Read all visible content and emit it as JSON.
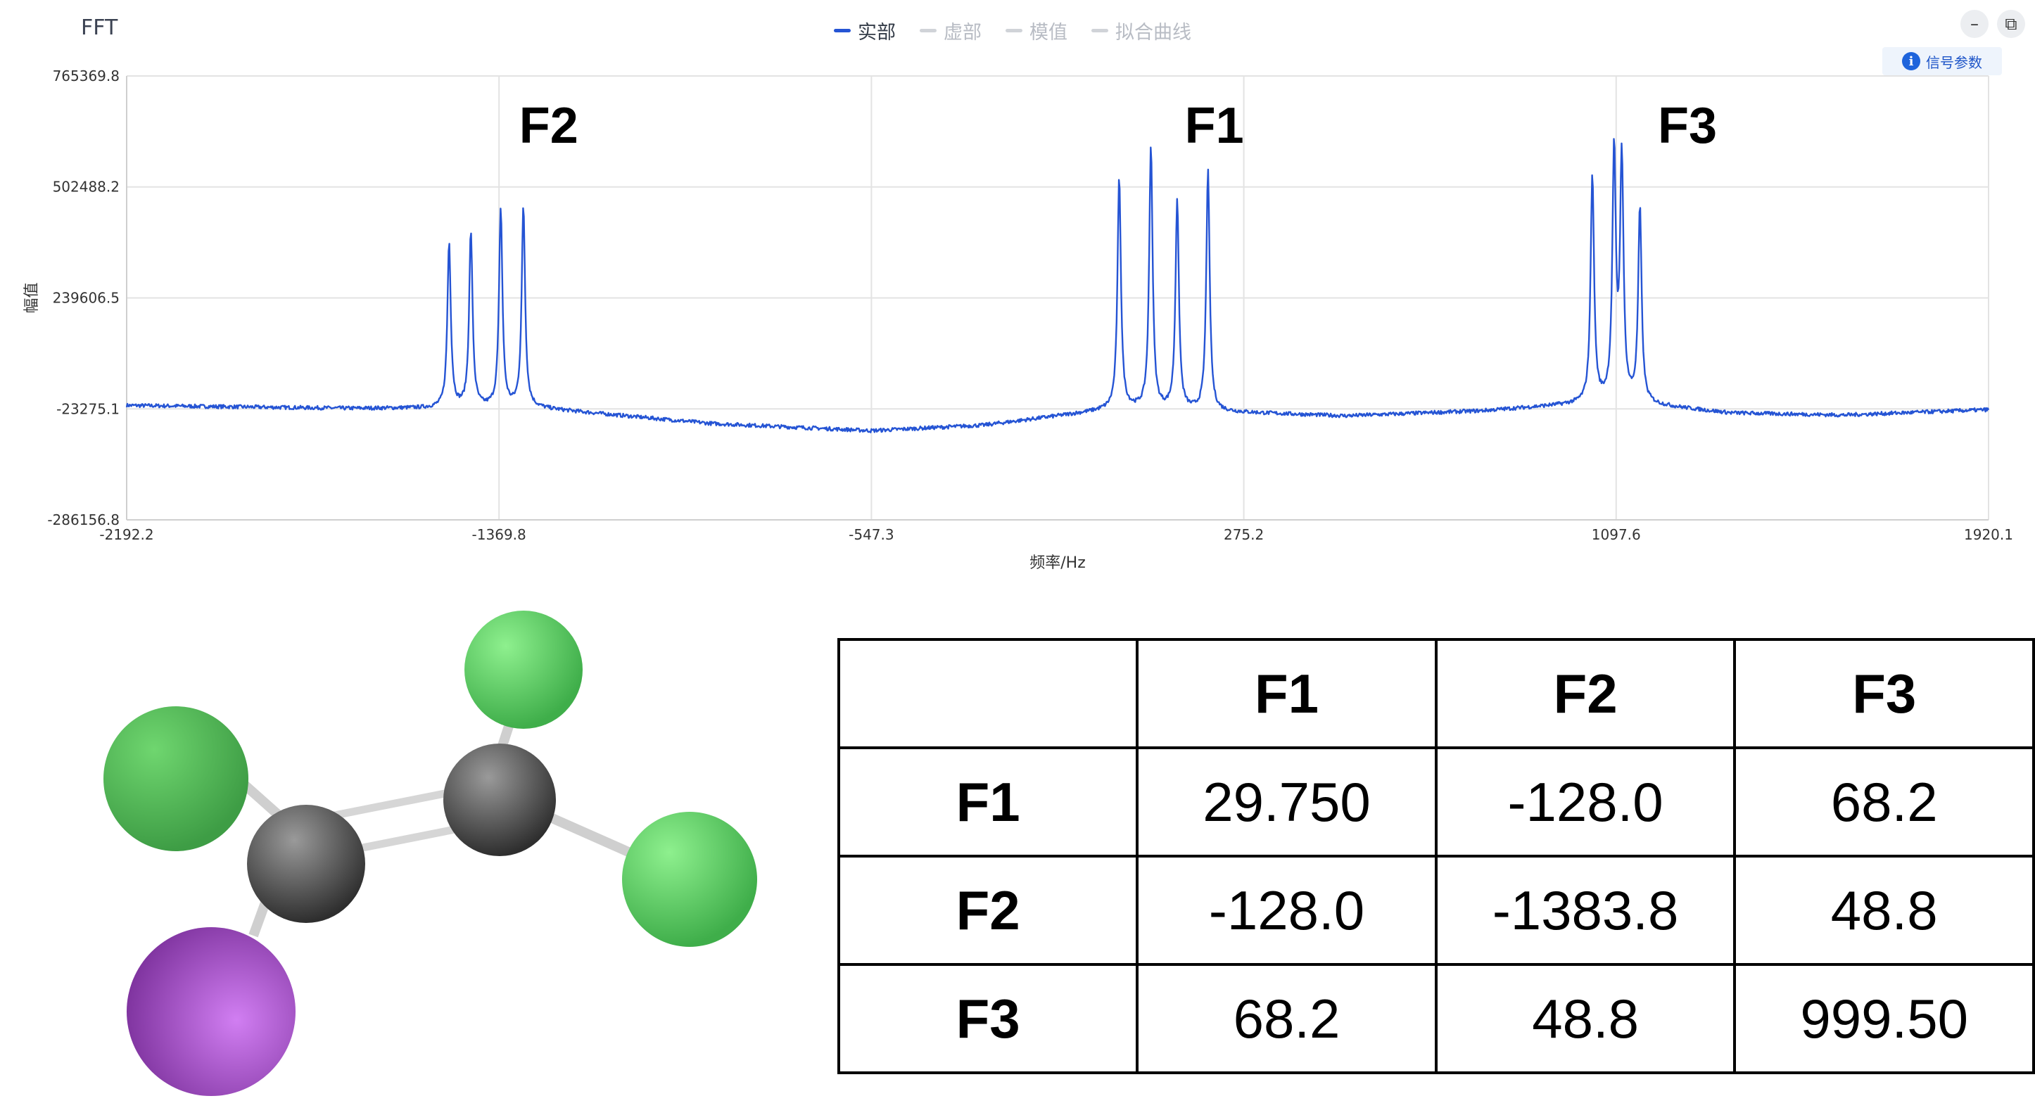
{
  "window": {
    "title": "FFT",
    "legend": [
      {
        "label": "实部",
        "active": true
      },
      {
        "label": "虚部",
        "active": false
      },
      {
        "label": "模值",
        "active": false
      },
      {
        "label": "拟合曲线",
        "active": false
      }
    ],
    "minimize_icon": "minimize-icon",
    "restore_icon": "restore-icon",
    "signal_params_label": "信号参数"
  },
  "chart_data": {
    "type": "line",
    "xlabel": "频率/Hz",
    "ylabel": "幅值",
    "xlim": [
      -2192.2,
      1920.1
    ],
    "ylim": [
      -286156.8,
      765369.8
    ],
    "x_ticks": [
      "-2192.2",
      "-1369.8",
      "-547.3",
      "275.2",
      "1097.6",
      "1920.1"
    ],
    "y_ticks": [
      "765369.8",
      "502488.2",
      "239606.5",
      "-23275.1",
      "-286156.8"
    ],
    "grid": true,
    "series": [
      {
        "name": "实部",
        "color": "#2554d4",
        "baseline": [
          [
            -2192.2,
            -15000
          ],
          [
            -1700,
            -22000
          ],
          [
            -1300,
            -20000
          ],
          [
            -900,
            -58000
          ],
          [
            -547.3,
            -75000
          ],
          [
            -300,
            -62000
          ],
          [
            0,
            -22000
          ],
          [
            500,
            -40000
          ],
          [
            800,
            -28000
          ],
          [
            1097.6,
            -5000
          ],
          [
            1350,
            -33000
          ],
          [
            1600,
            -38000
          ],
          [
            1920.1,
            -25000
          ]
        ],
        "peaks": [
          {
            "x": -1480,
            "y": 370000,
            "w": 4.5
          },
          {
            "x": -1432,
            "y": 395000,
            "w": 4.5
          },
          {
            "x": -1366,
            "y": 450000,
            "w": 4.5
          },
          {
            "x": -1316,
            "y": 455000,
            "w": 4.5
          },
          {
            "x": 0,
            "y": 525000,
            "w": 4.5
          },
          {
            "x": 70,
            "y": 600000,
            "w": 4.5
          },
          {
            "x": 128,
            "y": 470000,
            "w": 4.5
          },
          {
            "x": 196,
            "y": 540000,
            "w": 4.5
          },
          {
            "x": 1045,
            "y": 532000,
            "w": 4.5
          },
          {
            "x": 1093,
            "y": 580000,
            "w": 4.5
          },
          {
            "x": 1110,
            "y": 565000,
            "w": 4.5
          },
          {
            "x": 1150,
            "y": 450000,
            "w": 4.5
          }
        ]
      }
    ],
    "annotations": [
      {
        "text": "F2",
        "x": -1260
      },
      {
        "text": "F1",
        "x": 210
      },
      {
        "text": "F3",
        "x": 1255
      }
    ]
  },
  "coupling_table": {
    "headers": [
      "",
      "F1",
      "F2",
      "F3"
    ],
    "rows": [
      {
        "label": "F1",
        "values": [
          "29.750",
          "-128.0",
          "68.2"
        ]
      },
      {
        "label": "F2",
        "values": [
          "-128.0",
          "-1383.8",
          "48.8"
        ]
      },
      {
        "label": "F3",
        "values": [
          "68.2",
          "48.8",
          "999.50"
        ]
      }
    ]
  }
}
